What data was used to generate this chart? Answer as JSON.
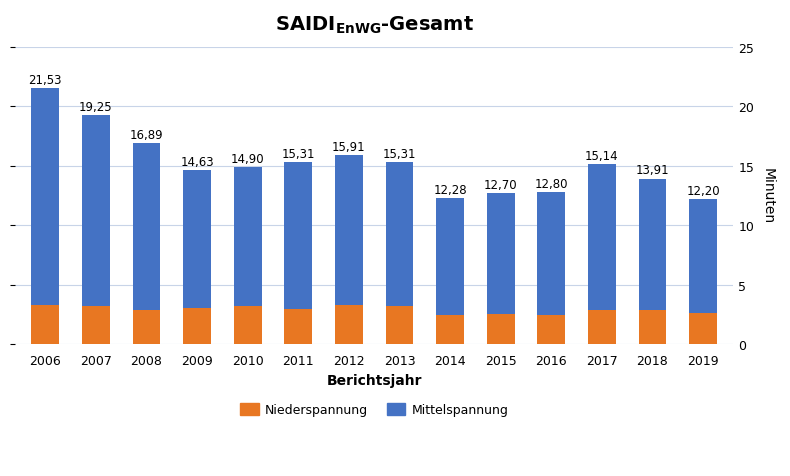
{
  "years": [
    2006,
    2007,
    2008,
    2009,
    2010,
    2011,
    2012,
    2013,
    2014,
    2015,
    2016,
    2017,
    2018,
    2019
  ],
  "totals": [
    21.53,
    19.25,
    16.89,
    14.63,
    14.9,
    15.31,
    15.91,
    15.31,
    12.28,
    12.7,
    12.8,
    15.14,
    13.91,
    12.2
  ],
  "niederspannung": [
    3.27,
    3.2,
    2.89,
    3.05,
    3.2,
    2.97,
    3.3,
    3.2,
    2.45,
    2.55,
    2.45,
    2.85,
    2.9,
    2.6
  ],
  "color_niederspannung": "#E87722",
  "color_mittelspannung": "#4472C4",
  "xlabel": "Berichtsjahr",
  "ylabel": "Minuten",
  "ylim": [
    0,
    25
  ],
  "yticks": [
    0,
    5,
    10,
    15,
    20,
    25
  ],
  "legend_niederspannung": "Niederspannung",
  "legend_mittelspannung": "Mittelspannung",
  "bar_width": 0.55,
  "background_color": "#ffffff",
  "grid_color": "#c8d4e8",
  "label_fontsize": 8.5,
  "title_fontsize": 14,
  "axis_fontsize": 10
}
